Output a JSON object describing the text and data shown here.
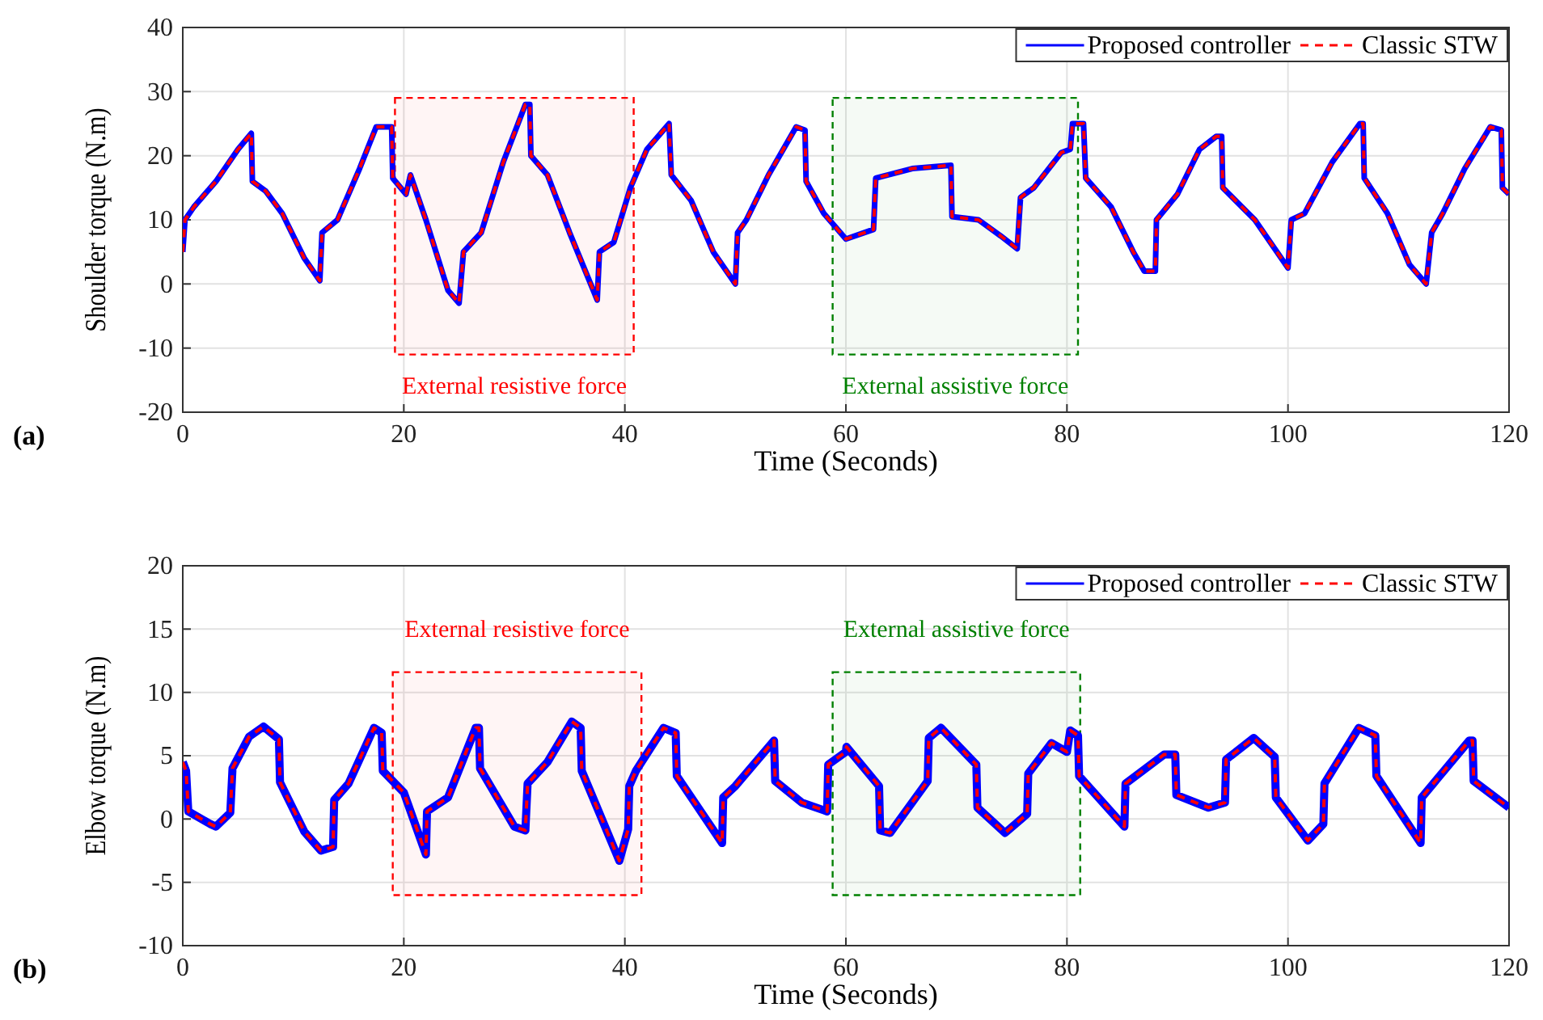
{
  "chart_data": [
    {
      "type": "line",
      "xlabel": "Time (Seconds)",
      "ylabel": "Shoulder torque (N.m)",
      "annotations": [
        "(a)"
      ],
      "xlim": [
        0,
        120
      ],
      "xticks": [
        0,
        20,
        40,
        60,
        80,
        100,
        120
      ],
      "ylim": [
        -20,
        40
      ],
      "yticks": [
        -20,
        -10,
        0,
        10,
        20,
        30,
        40
      ],
      "grid": true,
      "legend": "top right",
      "x": [
        0,
        0.2,
        1,
        3,
        5,
        6.2,
        6.3,
        7.5,
        9,
        11,
        12.4,
        12.6,
        14,
        16,
        17.5,
        18.9,
        19,
        20.2,
        20.6,
        22,
        24,
        25,
        25.4,
        27,
        29,
        31,
        31.4,
        31.5,
        33,
        35,
        37.5,
        37.7,
        39,
        40.5,
        42,
        44,
        44.2,
        46,
        48,
        50,
        50.2,
        51,
        53,
        55.5,
        56.3,
        56.4,
        58,
        60,
        62.5,
        62.7,
        66,
        69.5,
        69.6,
        72,
        74,
        75.5,
        75.8,
        77,
        79.5,
        80.3,
        80.5,
        81.5,
        81.7,
        84,
        86,
        87,
        88,
        88.1,
        90,
        92,
        93.5,
        94,
        94.1,
        97,
        100,
        100.3,
        101.5,
        104,
        106.5,
        106.8,
        106.9,
        109,
        111,
        112.5,
        113,
        114,
        116,
        118.3,
        119.3,
        119.4,
        120
      ],
      "series": [
        {
          "name": "Proposed controller",
          "color": "#0000ff",
          "line_style": "solid",
          "values": [
            5,
            10,
            12,
            16,
            21,
            23.5,
            16,
            14.5,
            11,
            4,
            0.5,
            8,
            10,
            18,
            24.5,
            24.5,
            16.5,
            14,
            17,
            10,
            -1,
            -3,
            5,
            8,
            19,
            28,
            28,
            20,
            17,
            8,
            -2.5,
            5,
            6.5,
            15,
            21,
            25,
            17,
            13,
            5,
            0,
            8,
            10,
            17,
            24.5,
            24,
            16,
            11,
            7,
            8.5,
            16.5,
            18,
            18.5,
            10.5,
            10,
            7.5,
            5.5,
            13.5,
            15,
            20.5,
            21,
            25,
            25,
            16.5,
            12,
            5,
            2,
            2,
            10,
            14,
            21,
            23,
            23,
            15,
            10,
            2.5,
            10,
            11,
            19,
            25,
            25,
            16.5,
            11,
            3,
            0,
            8,
            11,
            18,
            24.5,
            24,
            15,
            14
          ]
        },
        {
          "name": "Classic STW",
          "color": "#ff0000",
          "line_style": "dashed",
          "values": [
            5,
            10,
            12,
            16,
            21,
            23.5,
            16,
            14.5,
            11,
            4,
            0.5,
            8,
            10,
            18,
            24.5,
            24.5,
            16.5,
            14,
            17,
            10,
            -1,
            -3,
            5,
            8,
            19,
            28,
            28,
            20,
            17,
            8,
            -2.5,
            5,
            6.5,
            15,
            21,
            25,
            17,
            13,
            5,
            0,
            8,
            10,
            17,
            24.5,
            24,
            16,
            11,
            7,
            8.5,
            16.5,
            18,
            18.5,
            10.5,
            10,
            7.5,
            5.5,
            13.5,
            15,
            20.5,
            21,
            25,
            25,
            16.5,
            12,
            5,
            2,
            2,
            10,
            14,
            21,
            23,
            23,
            15,
            10,
            2.5,
            10,
            11,
            19,
            25,
            25,
            16.5,
            11,
            3,
            0,
            8,
            11,
            18,
            24.5,
            24,
            15,
            14
          ]
        }
      ],
      "bands": [
        {
          "axis": "x",
          "from": 19.2,
          "to": 40.8,
          "label": "External resistive force",
          "color": "#ff0000"
        },
        {
          "axis": "x",
          "from": 58.8,
          "to": 81,
          "label": "External assistive force",
          "color": "#008000"
        }
      ]
    },
    {
      "type": "line",
      "xlabel": "Time (Seconds)",
      "ylabel": "Elbow torque (N.m)",
      "annotations": [
        "(b)"
      ],
      "xlim": [
        0,
        120
      ],
      "xticks": [
        0,
        20,
        40,
        60,
        80,
        100,
        120
      ],
      "ylim": [
        -10,
        20
      ],
      "yticks": [
        -10,
        -5,
        0,
        5,
        10,
        15,
        20
      ],
      "grid": true,
      "legend": "top right",
      "x": [
        0,
        0.3,
        0.5,
        2.5,
        3,
        4.3,
        4.5,
        6,
        7.3,
        8.7,
        8.8,
        11,
        12.5,
        13.6,
        13.7,
        15,
        17.3,
        18,
        18.1,
        20,
        22,
        22.1,
        24,
        26.5,
        26.8,
        26.9,
        30,
        31,
        31.2,
        33,
        35.2,
        36,
        36.1,
        39.5,
        40.3,
        40.4,
        41,
        43.5,
        44.6,
        44.7,
        48.8,
        48.9,
        50,
        53.5,
        53.6,
        56,
        58.3,
        58.4,
        60,
        60.05,
        63,
        63.1,
        64,
        67.4,
        67.5,
        68.6,
        71.8,
        71.9,
        74.4,
        76.4,
        76.5,
        78.6,
        80,
        80.3,
        81,
        81.1,
        85.2,
        85.3,
        88.8,
        89.8,
        89.9,
        92.8,
        94.3,
        94.4,
        96.9,
        98.8,
        98.9,
        101.8,
        103.2,
        103.3,
        106.4,
        107.9,
        108,
        112,
        112.1,
        116.4,
        116.7,
        116.8,
        120
      ],
      "series": [
        {
          "name": "Proposed controller",
          "color": "#0000ff",
          "line_style": "solid",
          "values": [
            4.5,
            3.8,
            0.6,
            -0.4,
            -0.6,
            0.5,
            4,
            6.5,
            7.3,
            6.3,
            2.9,
            -1,
            -2.5,
            -2.2,
            1.5,
            2.8,
            7.2,
            6.8,
            3.8,
            2.1,
            -2.8,
            0.6,
            1.7,
            7.2,
            7.2,
            4,
            -0.6,
            -0.9,
            2.8,
            4.5,
            7.7,
            7.2,
            3.8,
            -3.3,
            -0.8,
            2.6,
            3.8,
            7.2,
            6.8,
            3.4,
            -1.9,
            1.7,
            2.6,
            6.2,
            3,
            1.3,
            0.6,
            4.3,
            5.3,
            5.7,
            2.6,
            -0.9,
            -1.1,
            3,
            6.4,
            7.2,
            4.3,
            0.9,
            -1.1,
            0.4,
            3.6,
            6,
            5.3,
            7,
            6.6,
            3.4,
            -0.6,
            2.8,
            5.1,
            5.1,
            1.9,
            0.9,
            1.3,
            4.7,
            6.4,
            4.9,
            1.7,
            -1.7,
            -0.4,
            2.8,
            7.2,
            6.6,
            3.4,
            -1.9,
            1.7,
            6.2,
            6.2,
            3,
            0.9
          ]
        },
        {
          "name": "Classic STW",
          "color": "#ff0000",
          "line_style": "dashed",
          "values": [
            4.5,
            3.8,
            0.6,
            -0.4,
            -0.6,
            0.5,
            4,
            6.5,
            7.3,
            6.3,
            2.9,
            -1,
            -2.5,
            -2.2,
            1.5,
            2.8,
            7.2,
            6.8,
            3.8,
            2.1,
            -2.8,
            0.6,
            1.7,
            7.2,
            7.2,
            4,
            -0.6,
            -0.9,
            2.8,
            4.5,
            7.7,
            7.2,
            3.8,
            -3.3,
            -0.8,
            2.6,
            3.8,
            7.2,
            6.8,
            3.4,
            -1.9,
            1.7,
            2.6,
            6.2,
            3,
            1.3,
            0.6,
            4.3,
            5.3,
            5.7,
            2.6,
            -0.9,
            -1.1,
            3,
            6.4,
            7.2,
            4.3,
            0.9,
            -1.1,
            0.4,
            3.6,
            6,
            5.3,
            7,
            6.6,
            3.4,
            -0.6,
            2.8,
            5.1,
            5.1,
            1.9,
            0.9,
            1.3,
            4.7,
            6.4,
            4.9,
            1.7,
            -1.7,
            -0.4,
            2.8,
            7.2,
            6.6,
            3.4,
            -1.9,
            1.7,
            6.2,
            6.2,
            3,
            0.9
          ]
        }
      ],
      "bands": [
        {
          "axis": "x",
          "from": 19,
          "to": 41.5,
          "label": "External resistive force",
          "color": "#ff0000"
        },
        {
          "axis": "x",
          "from": 58.8,
          "to": 81.2,
          "label": "External assistive force",
          "color": "#008000"
        }
      ]
    }
  ]
}
